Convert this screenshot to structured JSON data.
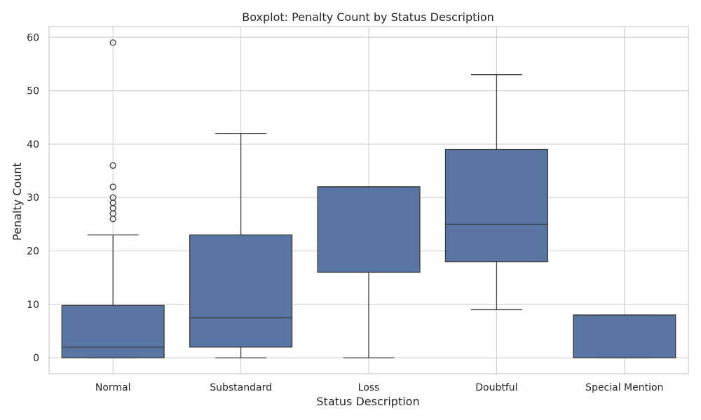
{
  "chart_data": {
    "type": "boxplot",
    "title": "Boxplot: Penalty Count by Status Description",
    "xlabel": "Status Description",
    "ylabel": "Penalty Count",
    "ylim": [
      -3,
      62
    ],
    "yticks": [
      0,
      10,
      20,
      30,
      40,
      50,
      60
    ],
    "grid": true,
    "categories": [
      "Normal",
      "Substandard",
      "Loss",
      "Doubtful",
      "Special Mention"
    ],
    "boxes": [
      {
        "category": "Normal",
        "whisker_low": 0,
        "q1": 0,
        "median": 2,
        "q3": 9.8,
        "whisker_high": 23,
        "outliers": [
          26,
          27,
          28,
          29,
          30,
          32,
          36,
          59
        ]
      },
      {
        "category": "Substandard",
        "whisker_low": 0,
        "q1": 2,
        "median": 7.5,
        "q3": 23,
        "whisker_high": 42,
        "outliers": []
      },
      {
        "category": "Loss",
        "whisker_low": 0,
        "q1": 16,
        "median": 32,
        "q3": 32,
        "whisker_high": 32,
        "outliers": []
      },
      {
        "category": "Doubtful",
        "whisker_low": 9,
        "q1": 18,
        "median": 25,
        "q3": 39,
        "whisker_high": 53,
        "outliers": []
      },
      {
        "category": "Special Mention",
        "whisker_low": 0,
        "q1": 0,
        "median": 8,
        "q3": 8,
        "whisker_high": 8,
        "outliers": []
      }
    ],
    "box_color": "#5875a4",
    "line_color": "#3f3f3f",
    "grid_color": "#cccccc",
    "frame_color": "#cccccc"
  }
}
